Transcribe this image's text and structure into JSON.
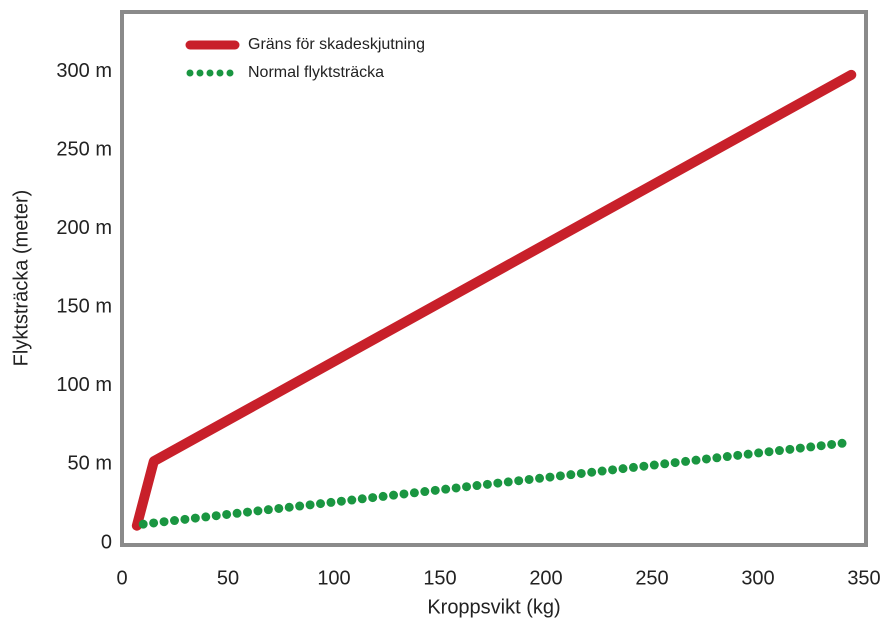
{
  "chart_data": {
    "type": "line",
    "x_label": "Kroppsvikt (kg)",
    "y_label": "Flyktsträcka (meter)",
    "xlim": [
      0,
      350
    ],
    "ylim": [
      0,
      338
    ],
    "xticks": [
      0,
      50,
      100,
      150,
      200,
      250,
      300,
      350
    ],
    "yticks": [
      0,
      {
        "value": 50,
        "label": "50 m"
      },
      {
        "value": 100,
        "label": "100 m"
      },
      {
        "value": 150,
        "label": "150 m"
      },
      {
        "value": 200,
        "label": "200 m"
      },
      {
        "value": 250,
        "label": "250 m"
      },
      {
        "value": 300,
        "label": "300 m"
      }
    ],
    "legend": "top-left",
    "series": [
      {
        "name": "Gräns för skadeskjutning",
        "color": "#c8202a",
        "style": "solid",
        "x": [
          7,
          15,
          344
        ],
        "values": [
          11,
          52,
          298
        ]
      },
      {
        "name": "Normal flyktsträcka",
        "color": "#1a9641",
        "style": "dotted",
        "x": [
          10,
          343
        ],
        "values": [
          12,
          64
        ]
      }
    ]
  }
}
